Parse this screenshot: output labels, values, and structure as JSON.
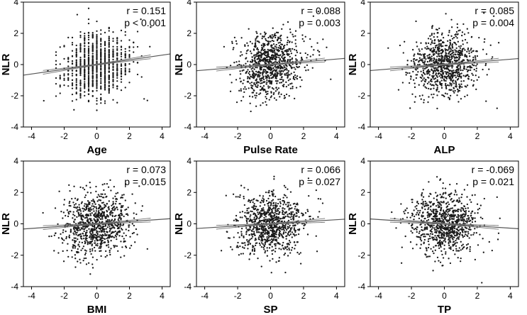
{
  "chart_data": [
    {
      "type": "scatter",
      "xlabel": "Age",
      "ylabel": "NLR",
      "r_label": "r = 0.151",
      "p_label": "p < 0.001",
      "r": 0.151,
      "xlim": [
        -4.5,
        4.5
      ],
      "ylim": [
        -4,
        4
      ],
      "xticks": [
        -4,
        -2,
        0,
        2,
        4
      ],
      "yticks": [
        -4,
        -2,
        0,
        2,
        4
      ],
      "x_tick_labels": [
        "-4",
        "-2",
        "0",
        "2",
        "4"
      ],
      "y_tick_labels": [
        "-4",
        "-2",
        "0",
        "2",
        "4"
      ],
      "fit_line": {
        "intercept": 0.0,
        "slope": 0.151
      },
      "n_points": 900,
      "x_discrete": true,
      "outliers": [
        [
          -1.2,
          3.2
        ],
        [
          -0.5,
          3.6
        ],
        [
          2.7,
          2.9
        ],
        [
          3.3,
          2.4
        ],
        [
          3.1,
          -2.3
        ],
        [
          -1.4,
          -2.9
        ],
        [
          2.9,
          -2.2
        ]
      ]
    },
    {
      "type": "scatter",
      "xlabel": "Pulse Rate",
      "ylabel": "NLR",
      "r_label": "r = 0.088",
      "p_label": "p = 0.003",
      "r": 0.088,
      "xlim": [
        -4.5,
        4.5
      ],
      "ylim": [
        -4,
        4
      ],
      "xticks": [
        -4,
        -2,
        0,
        2,
        4
      ],
      "yticks": [
        -4,
        -2,
        0,
        2,
        4
      ],
      "x_tick_labels": [
        "-4",
        "-2",
        "0",
        "2",
        "4"
      ],
      "y_tick_labels": [
        "-4",
        "-2",
        "0",
        "2",
        "4"
      ],
      "fit_line": {
        "intercept": 0.0,
        "slope": 0.088
      },
      "n_points": 900,
      "x_discrete": false,
      "outliers": [
        [
          2.6,
          3.1
        ],
        [
          2.9,
          3.4
        ],
        [
          -1.2,
          -3.0
        ],
        [
          3.4,
          1.1
        ]
      ]
    },
    {
      "type": "scatter",
      "xlabel": "ALP",
      "ylabel": "NLR",
      "r_label": "r = 0.085",
      "p_label": "p = 0.004",
      "r": 0.085,
      "xlim": [
        -4.5,
        4.5
      ],
      "ylim": [
        -4,
        4
      ],
      "xticks": [
        -4,
        -2,
        0,
        2,
        4
      ],
      "yticks": [
        -4,
        -2,
        0,
        2,
        4
      ],
      "x_tick_labels": [
        "-4",
        "-2",
        "0",
        "2",
        "4"
      ],
      "y_tick_labels": [
        "-4",
        "-2",
        "0",
        "2",
        "4"
      ],
      "fit_line": {
        "intercept": 0.0,
        "slope": 0.085
      },
      "n_points": 900,
      "x_discrete": false,
      "outliers": [
        [
          3.0,
          3.1
        ],
        [
          3.3,
          1.4
        ],
        [
          3.2,
          -2.8
        ],
        [
          -1.8,
          -2.4
        ],
        [
          2.4,
          3.3
        ]
      ]
    },
    {
      "type": "scatter",
      "xlabel": "BMI",
      "ylabel": "NLR",
      "r_label": "r = 0.073",
      "p_label": "p = 0.015",
      "r": 0.073,
      "xlim": [
        -4.5,
        4.5
      ],
      "ylim": [
        -4,
        4
      ],
      "xticks": [
        -4,
        -2,
        0,
        2,
        4
      ],
      "yticks": [
        -4,
        -2,
        0,
        2,
        4
      ],
      "x_tick_labels": [
        "-4",
        "-2",
        "0",
        "2",
        "4"
      ],
      "y_tick_labels": [
        "-4",
        "-2",
        "0",
        "2",
        "4"
      ],
      "fit_line": {
        "intercept": 0.0,
        "slope": 0.073
      },
      "n_points": 900,
      "x_discrete": false,
      "outliers": [
        [
          -3.3,
          0.7
        ],
        [
          3.1,
          -1.6
        ],
        [
          -0.4,
          -3.2
        ],
        [
          2.6,
          2.4
        ]
      ]
    },
    {
      "type": "scatter",
      "xlabel": "SP",
      "ylabel": "NLR",
      "r_label": "r = 0.066",
      "p_label": "p = 0.027",
      "r": 0.066,
      "xlim": [
        -4.5,
        4.5
      ],
      "ylim": [
        -4,
        4
      ],
      "xticks": [
        -4,
        -2,
        0,
        2,
        4
      ],
      "yticks": [
        -4,
        -2,
        0,
        2,
        4
      ],
      "x_tick_labels": [
        "-4",
        "-2",
        "0",
        "2",
        "4"
      ],
      "y_tick_labels": [
        "-4",
        "-2",
        "0",
        "2",
        "4"
      ],
      "fit_line": {
        "intercept": 0.0,
        "slope": 0.066
      },
      "n_points": 900,
      "x_discrete": false,
      "outliers": [
        [
          2.3,
          2.9
        ],
        [
          2.9,
          1.6
        ],
        [
          -2.7,
          1.8
        ],
        [
          0.9,
          -3.1
        ]
      ]
    },
    {
      "type": "scatter",
      "xlabel": "TP",
      "ylabel": "NLR",
      "r_label": "r = -0.069",
      "p_label": "p = 0.021",
      "r": -0.069,
      "xlim": [
        -4.5,
        4.5
      ],
      "ylim": [
        -4,
        4
      ],
      "xticks": [
        -4,
        -2,
        0,
        2,
        4
      ],
      "yticks": [
        -4,
        -2,
        0,
        2,
        4
      ],
      "x_tick_labels": [
        "-4",
        "-2",
        "0",
        "2",
        "4"
      ],
      "y_tick_labels": [
        "-4",
        "-2",
        "0",
        "2",
        "4"
      ],
      "fit_line": {
        "intercept": 0.0,
        "slope": -0.069
      },
      "n_points": 900,
      "x_discrete": false,
      "outliers": [
        [
          3.3,
          3.6
        ],
        [
          3.2,
          1.7
        ],
        [
          -2.6,
          -2.5
        ],
        [
          2.9,
          -1.7
        ]
      ]
    }
  ],
  "colors": {
    "points": "#1a1a1a",
    "fit_line": "#555555",
    "ci_band": "#777777",
    "frame": "#000000",
    "background": "#ffffff"
  }
}
